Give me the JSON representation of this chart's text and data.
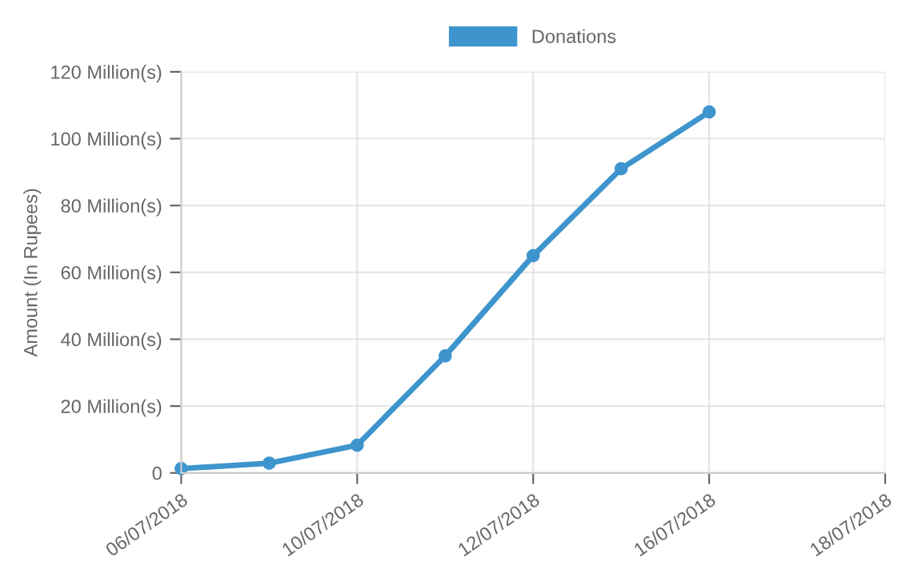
{
  "chart_data": {
    "type": "line",
    "categories": [
      "06/07/2018",
      null,
      "10/07/2018",
      null,
      "12/07/2018",
      null,
      "16/07/2018",
      null,
      "18/07/2018"
    ],
    "series": [
      {
        "name": "Donations",
        "color": "#3e95cd",
        "values": [
          1.3,
          2.9,
          8.3,
          35,
          65,
          91,
          108,
          null,
          null
        ]
      }
    ],
    "ylabel": "Amount (In Rupees)",
    "ylim": [
      0,
      120
    ],
    "yticks": [
      0,
      {
        "value": 20,
        "label": "20 Million(s)"
      },
      {
        "value": 40,
        "label": "40 Million(s)"
      },
      {
        "value": 60,
        "label": "60 Million(s)"
      },
      {
        "value": 80,
        "label": "80 Million(s)"
      },
      {
        "value": 100,
        "label": "100 Million(s)"
      },
      {
        "value": 120,
        "label": "120 Million(s)"
      }
    ],
    "grid": true,
    "legend": "top",
    "marker": "circle",
    "line_style": "solid"
  }
}
